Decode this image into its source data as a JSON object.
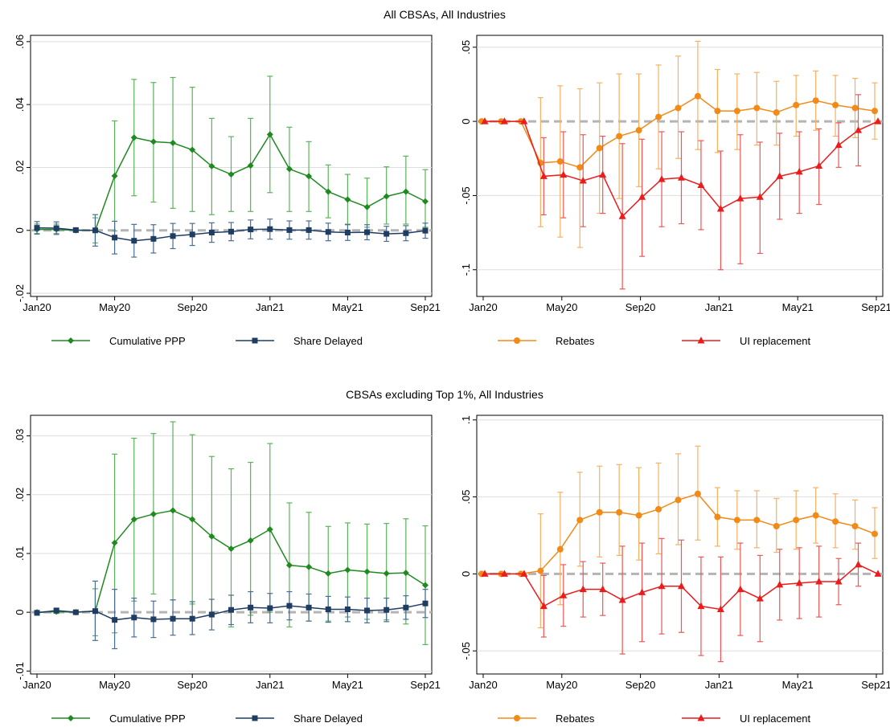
{
  "panels": [
    {
      "title": "All CBSAs, All Industries"
    },
    {
      "title": "CBSAs excluding Top 1%, All Industries"
    }
  ],
  "colors": {
    "ppp": "#1f8a1f",
    "ppp_bar": "#5bb35b",
    "delay": "#1f3d63",
    "delay_bar": "#4a6d94",
    "rebates": "#f28a18",
    "rebates_bar": "#f7b060",
    "ui": "#ea1c1c",
    "ui_bar": "#f05555",
    "zero_line": "#b4b4b4",
    "grid": "#dedede"
  },
  "chart_data": [
    {
      "type": "line",
      "x": [
        "Jan20",
        "Feb20",
        "Mar20",
        "Apr20",
        "May20",
        "Jun20",
        "Jul20",
        "Aug20",
        "Sep20",
        "Oct20",
        "Nov20",
        "Dec20",
        "Jan21",
        "Feb21",
        "Mar21",
        "Apr21",
        "May21",
        "Jun21",
        "Jul21",
        "Aug21",
        "Sep21"
      ],
      "xticks": [
        "Jan20",
        "May20",
        "Sep20",
        "Jan21",
        "May21",
        "Sep21"
      ],
      "ylim": [
        -0.021,
        0.062
      ],
      "yticks": [
        -0.02,
        0,
        0.02,
        0.04,
        0.06
      ],
      "ytick_labels": [
        "-.02",
        "0",
        ".02",
        ".04",
        ".06"
      ],
      "series": [
        {
          "name": "Cumulative PPP",
          "values": [
            0.0003,
            0.0003,
            0.0,
            0.0,
            0.0173,
            0.0295,
            0.0282,
            0.0278,
            0.0256,
            0.0204,
            0.0178,
            0.0206,
            0.0305,
            0.0195,
            0.0172,
            0.0123,
            0.0098,
            0.0074,
            0.0108,
            0.0123,
            0.0092
          ],
          "lower": [
            -0.001,
            -0.001,
            -0.0005,
            -0.004,
            -0.0002,
            0.011,
            0.009,
            0.007,
            0.006,
            0.005,
            0.006,
            0.006,
            0.012,
            0.006,
            0.006,
            0.004,
            0.002,
            0.001,
            0.002,
            0.002,
            0.001
          ],
          "upper": [
            0.002,
            0.002,
            0.0005,
            0.004,
            0.0348,
            0.048,
            0.047,
            0.0486,
            0.0455,
            0.0356,
            0.0298,
            0.0356,
            0.049,
            0.0328,
            0.0282,
            0.0208,
            0.0178,
            0.0166,
            0.0202,
            0.0236,
            0.0193
          ]
        },
        {
          "name": "Share Delayed",
          "values": [
            0.0008,
            0.0007,
            0.0001,
            0.0,
            -0.0023,
            -0.0033,
            -0.0027,
            -0.0018,
            -0.0013,
            -0.0007,
            -0.0004,
            0.0003,
            0.0004,
            0.0001,
            0.0001,
            -0.0005,
            -0.0007,
            -0.0006,
            -0.0011,
            -0.0009,
            -0.0001
          ],
          "lower": [
            -0.0012,
            -0.0013,
            -0.0005,
            -0.005,
            -0.0075,
            -0.0085,
            -0.0072,
            -0.0058,
            -0.0048,
            -0.0038,
            -0.0033,
            -0.0027,
            -0.0028,
            -0.0028,
            -0.0028,
            -0.0033,
            -0.0032,
            -0.003,
            -0.0035,
            -0.0033,
            -0.0025
          ],
          "upper": [
            0.0028,
            0.0027,
            0.0007,
            0.005,
            0.0029,
            0.0019,
            0.0018,
            0.0022,
            0.0022,
            0.0024,
            0.0025,
            0.0033,
            0.0036,
            0.003,
            0.003,
            0.0023,
            0.0018,
            0.0018,
            0.0013,
            0.0015,
            0.0023
          ]
        }
      ]
    },
    {
      "type": "line",
      "x": [
        "Jan20",
        "Feb20",
        "Mar20",
        "Apr20",
        "May20",
        "Jun20",
        "Jul20",
        "Aug20",
        "Sep20",
        "Oct20",
        "Nov20",
        "Dec20",
        "Jan21",
        "Feb21",
        "Mar21",
        "Apr21",
        "May21",
        "Jun21",
        "Jul21",
        "Aug21",
        "Sep21"
      ],
      "xticks": [
        "Jan20",
        "May20",
        "Sep20",
        "Jan21",
        "May21",
        "Sep21"
      ],
      "ylim": [
        -0.118,
        0.058
      ],
      "yticks": [
        -0.1,
        -0.05,
        0,
        0.05
      ],
      "ytick_labels": [
        "-.1",
        "-.05",
        "0",
        ".05"
      ],
      "gridlines": [
        -0.1,
        -0.05,
        0.05
      ],
      "series": [
        {
          "name": "Rebates",
          "values": [
            0.0,
            0.0,
            0.0,
            -0.028,
            -0.027,
            -0.031,
            -0.018,
            -0.01,
            -0.006,
            0.003,
            0.009,
            0.017,
            0.007,
            0.007,
            0.009,
            0.006,
            0.011,
            0.014,
            0.011,
            0.009,
            0.007
          ],
          "lower": [
            0.0,
            0.0,
            0.0,
            -0.071,
            -0.078,
            -0.085,
            -0.062,
            -0.052,
            -0.044,
            -0.032,
            -0.025,
            -0.019,
            -0.021,
            -0.019,
            -0.016,
            -0.016,
            -0.01,
            -0.006,
            -0.01,
            -0.011,
            -0.012
          ],
          "upper": [
            0.0,
            0.0,
            0.0,
            0.016,
            0.024,
            0.022,
            0.026,
            0.032,
            0.032,
            0.038,
            0.044,
            0.054,
            0.035,
            0.032,
            0.033,
            0.027,
            0.031,
            0.034,
            0.031,
            0.029,
            0.026
          ]
        },
        {
          "name": "UI replacement",
          "values": [
            0.0,
            0.0,
            0.0,
            -0.037,
            -0.036,
            -0.04,
            -0.036,
            -0.064,
            -0.051,
            -0.039,
            -0.038,
            -0.043,
            -0.059,
            -0.052,
            -0.051,
            -0.037,
            -0.034,
            -0.03,
            -0.016,
            -0.006,
            0.0
          ],
          "lower": [
            0.0,
            0.0,
            0.0,
            -0.063,
            -0.065,
            -0.071,
            -0.062,
            -0.113,
            -0.091,
            -0.071,
            -0.069,
            -0.073,
            -0.1,
            -0.096,
            -0.089,
            -0.066,
            -0.062,
            -0.056,
            -0.031,
            -0.03,
            0.0
          ],
          "upper": [
            0.0,
            0.0,
            0.0,
            -0.011,
            -0.007,
            -0.009,
            -0.01,
            -0.015,
            -0.012,
            -0.007,
            -0.007,
            -0.013,
            -0.02,
            -0.009,
            -0.014,
            -0.008,
            -0.007,
            -0.005,
            -0.001,
            0.018,
            0.0
          ]
        }
      ]
    },
    {
      "type": "line",
      "x": [
        "Jan20",
        "Feb20",
        "Mar20",
        "Apr20",
        "May20",
        "Jun20",
        "Jul20",
        "Aug20",
        "Sep20",
        "Oct20",
        "Nov20",
        "Dec20",
        "Jan21",
        "Feb21",
        "Mar21",
        "Apr21",
        "May21",
        "Jun21",
        "Jul21",
        "Aug21",
        "Sep21"
      ],
      "xticks": [
        "Jan20",
        "May20",
        "Sep20",
        "Jan21",
        "May21",
        "Sep21"
      ],
      "ylim": [
        -0.0105,
        0.0335
      ],
      "yticks": [
        -0.01,
        0,
        0.01,
        0.02,
        0.03
      ],
      "ytick_labels": [
        "-.01",
        "0",
        ".01",
        ".02",
        ".03"
      ],
      "series": [
        {
          "name": "Cumulative PPP",
          "values": [
            0.0,
            0.0001,
            0.0,
            0.0002,
            0.0118,
            0.0158,
            0.0167,
            0.0173,
            0.0158,
            0.0129,
            0.0108,
            0.0122,
            0.0141,
            0.008,
            0.0077,
            0.0066,
            0.0072,
            0.0069,
            0.0066,
            0.0067,
            0.0046
          ],
          "lower": [
            -0.0002,
            -0.0002,
            -0.0002,
            -0.004,
            -0.0035,
            0.0019,
            0.0031,
            0.0021,
            0.0014,
            0.0,
            -0.0025,
            -0.0005,
            0.0,
            -0.0025,
            -0.0015,
            -0.0015,
            -0.0008,
            -0.0012,
            -0.0013,
            -0.002,
            -0.0055
          ],
          "upper": [
            0.0002,
            0.0004,
            0.0002,
            0.004,
            0.0269,
            0.0296,
            0.0304,
            0.0324,
            0.0302,
            0.0265,
            0.0244,
            0.0255,
            0.0287,
            0.0186,
            0.017,
            0.0146,
            0.0152,
            0.015,
            0.0151,
            0.0159,
            0.0147
          ]
        },
        {
          "name": "Share Delayed",
          "values": [
            -0.0001,
            0.0003,
            0.0,
            0.0002,
            -0.0013,
            -0.0009,
            -0.0012,
            -0.0011,
            -0.0011,
            -0.0004,
            0.0004,
            0.0008,
            0.0007,
            0.0011,
            0.0008,
            0.0005,
            0.0005,
            0.0003,
            0.0004,
            0.0008,
            0.0015
          ],
          "lower": [
            -0.0005,
            -0.0001,
            -0.0002,
            -0.0048,
            -0.0062,
            -0.0042,
            -0.0043,
            -0.0039,
            -0.0038,
            -0.003,
            -0.0021,
            -0.0018,
            -0.0018,
            -0.0013,
            -0.0015,
            -0.0017,
            -0.0016,
            -0.0018,
            -0.0016,
            -0.0012,
            -0.0009
          ],
          "upper": [
            0.0003,
            0.0007,
            0.0002,
            0.0053,
            0.0039,
            0.0024,
            0.0019,
            0.0021,
            0.0018,
            0.0022,
            0.0029,
            0.0035,
            0.0032,
            0.0035,
            0.0031,
            0.0027,
            0.0026,
            0.0024,
            0.0024,
            0.0028,
            0.0039
          ]
        }
      ]
    },
    {
      "type": "line",
      "x": [
        "Jan20",
        "Feb20",
        "Mar20",
        "Apr20",
        "May20",
        "Jun20",
        "Jul20",
        "Aug20",
        "Sep20",
        "Oct20",
        "Nov20",
        "Dec20",
        "Jan21",
        "Feb21",
        "Mar21",
        "Apr21",
        "May21",
        "Jun21",
        "Jul21",
        "Aug21",
        "Sep21"
      ],
      "xticks": [
        "Jan20",
        "May20",
        "Sep20",
        "Jan21",
        "May21",
        "Sep21"
      ],
      "ylim": [
        -0.065,
        0.103
      ],
      "yticks": [
        -0.05,
        0,
        0.05,
        0.1
      ],
      "ytick_labels": [
        "-.05",
        "0",
        ".05",
        ".1"
      ],
      "gridlines": [
        -0.05,
        0.05,
        0.1
      ],
      "series": [
        {
          "name": "Rebates",
          "values": [
            0.0,
            0.0,
            0.0,
            0.002,
            0.016,
            0.035,
            0.04,
            0.04,
            0.038,
            0.042,
            0.048,
            0.052,
            0.037,
            0.035,
            0.035,
            0.031,
            0.035,
            0.038,
            0.034,
            0.031,
            0.026
          ],
          "lower": [
            0.0,
            0.0,
            0.0,
            -0.035,
            -0.02,
            0.005,
            0.011,
            0.012,
            0.009,
            0.013,
            0.019,
            0.022,
            0.018,
            0.016,
            0.017,
            0.014,
            0.016,
            0.02,
            0.017,
            0.016,
            0.01
          ],
          "upper": [
            0.0,
            0.0,
            0.0,
            0.039,
            0.053,
            0.066,
            0.07,
            0.071,
            0.069,
            0.072,
            0.078,
            0.083,
            0.056,
            0.054,
            0.054,
            0.049,
            0.054,
            0.056,
            0.052,
            0.048,
            0.043
          ]
        },
        {
          "name": "UI replacement",
          "values": [
            0.0,
            0.0,
            0.0,
            -0.021,
            -0.014,
            -0.01,
            -0.01,
            -0.017,
            -0.012,
            -0.008,
            -0.008,
            -0.021,
            -0.023,
            -0.01,
            -0.016,
            -0.007,
            -0.006,
            -0.005,
            -0.005,
            0.006,
            0.0
          ],
          "lower": [
            0.0,
            0.0,
            0.0,
            -0.041,
            -0.034,
            -0.028,
            -0.027,
            -0.052,
            -0.044,
            -0.039,
            -0.038,
            -0.053,
            -0.057,
            -0.04,
            -0.044,
            -0.03,
            -0.029,
            -0.028,
            -0.02,
            -0.008,
            0.0
          ],
          "upper": [
            0.0,
            0.0,
            0.0,
            -0.001,
            0.006,
            0.008,
            0.007,
            0.018,
            0.02,
            0.023,
            0.022,
            0.011,
            0.011,
            0.02,
            0.012,
            0.016,
            0.017,
            0.018,
            0.01,
            0.02,
            0.0
          ]
        }
      ]
    }
  ]
}
